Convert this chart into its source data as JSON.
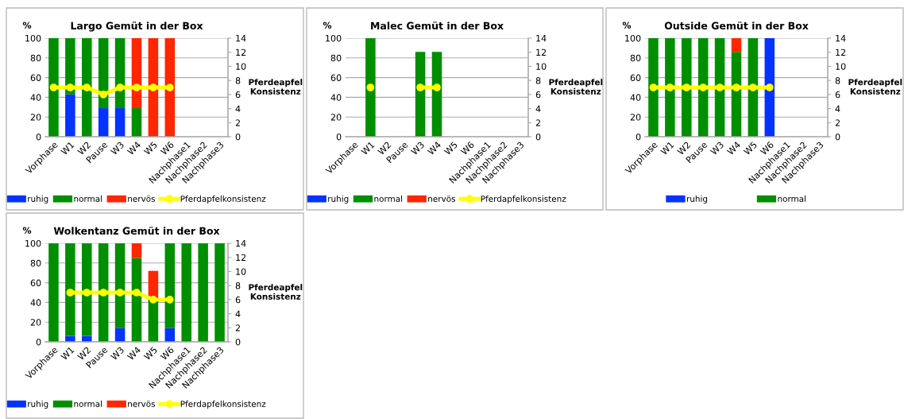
{
  "chart_data": [
    {
      "type": "bar",
      "title": "Largo Gemüt in der Box",
      "ylabel": "%",
      "y2label": "Pferdeapfel\nKonsistenz",
      "stacked": true,
      "grid": "y",
      "legend": "bottom",
      "categories": [
        "Vorphase",
        "W1",
        "W2",
        "Pause",
        "W3",
        "W4",
        "W5",
        "W6",
        "Nachphase1",
        "Nachphase2",
        "Nachphase3"
      ],
      "ylim": [
        0,
        100
      ],
      "yticks": [
        0,
        20,
        40,
        60,
        80,
        100
      ],
      "y2lim": [
        0,
        14
      ],
      "y2ticks": [
        0,
        2,
        4,
        6,
        8,
        10,
        12,
        14
      ],
      "series": [
        {
          "name": "ruhig",
          "color": "#0433ff",
          "values": [
            0,
            43,
            0,
            29,
            29,
            0,
            0,
            0,
            null,
            null,
            null
          ]
        },
        {
          "name": "normal",
          "color": "#008f00",
          "values": [
            100,
            57,
            100,
            71,
            71,
            29,
            0,
            0,
            null,
            null,
            null
          ]
        },
        {
          "name": "nervös",
          "color": "#ff2600",
          "values": [
            0,
            0,
            0,
            0,
            0,
            71,
            100,
            100,
            null,
            null,
            null
          ]
        },
        {
          "name": "Pferdapfelkonsistenz",
          "type": "line",
          "axis": "y2",
          "color": "#ffff00",
          "marker": "circle",
          "values": [
            7,
            7,
            7,
            6,
            7,
            7,
            7,
            7,
            null,
            null,
            null
          ]
        }
      ]
    },
    {
      "type": "bar",
      "title": "Malec Gemüt in der Box",
      "ylabel": "%",
      "y2label": "Pferdeapfel\nKonsistenz",
      "stacked": true,
      "grid": "y",
      "legend": "bottom",
      "categories": [
        "Vorphase",
        "W1",
        "W2",
        "Pause",
        "W3",
        "W4",
        "W5",
        "W6",
        "Nachphase1",
        "Nachphase2",
        "Nachphase3"
      ],
      "ylim": [
        0,
        100
      ],
      "yticks": [
        0,
        20,
        40,
        60,
        80,
        100
      ],
      "y2lim": [
        0,
        14
      ],
      "y2ticks": [
        0,
        2,
        4,
        6,
        8,
        10,
        12,
        14
      ],
      "series": [
        {
          "name": "ruhig",
          "color": "#0433ff",
          "values": [
            null,
            null,
            null,
            null,
            null,
            null,
            null,
            null,
            null,
            null,
            null
          ]
        },
        {
          "name": "normal",
          "color": "#008f00",
          "values": [
            null,
            100,
            null,
            null,
            86,
            86,
            null,
            null,
            null,
            null,
            null
          ]
        },
        {
          "name": "nervös",
          "color": "#ff2600",
          "values": [
            null,
            null,
            null,
            null,
            null,
            null,
            null,
            null,
            null,
            null,
            null
          ]
        },
        {
          "name": "Pferdapfelkonsistenz",
          "type": "line",
          "axis": "y2",
          "color": "#ffff00",
          "marker": "circle",
          "values": [
            null,
            7,
            null,
            null,
            7,
            7,
            null,
            null,
            null,
            null,
            null
          ]
        }
      ]
    },
    {
      "type": "bar",
      "title": "Outside Gemüt in der Box",
      "ylabel": "%",
      "y2label": "Pferdeapfel\nKonsistenz",
      "stacked": true,
      "grid": "y",
      "legend": "bottom",
      "categories": [
        "Vorphase",
        "W1",
        "W2",
        "Pause",
        "W3",
        "W4",
        "W5",
        "W6",
        "Nachphase1",
        "Nachphase2",
        "Nachphase3"
      ],
      "ylim": [
        0,
        100
      ],
      "yticks": [
        0,
        20,
        40,
        60,
        80,
        100
      ],
      "y2lim": [
        0,
        14
      ],
      "y2ticks": [
        0,
        2,
        4,
        6,
        8,
        10,
        12,
        14
      ],
      "series": [
        {
          "name": "ruhig",
          "color": "#0433ff",
          "values": [
            0,
            0,
            0,
            0,
            0,
            0,
            0,
            100,
            null,
            null,
            null
          ]
        },
        {
          "name": "normal",
          "color": "#008f00",
          "values": [
            100,
            100,
            100,
            100,
            100,
            86,
            100,
            0,
            null,
            null,
            null
          ]
        },
        {
          "color": "#ff2600",
          "values": [
            0,
            0,
            0,
            0,
            0,
            14,
            0,
            0,
            null,
            null,
            null
          ]
        },
        {
          "type": "line",
          "axis": "y2",
          "color": "#ffff00",
          "marker": "circle",
          "values": [
            7,
            7,
            7,
            7,
            7,
            7,
            7,
            7,
            null,
            null,
            null
          ]
        }
      ]
    },
    {
      "type": "bar",
      "title": "Wolkentanz Gemüt in der Box",
      "ylabel": "%",
      "y2label": "Pferdeapfel\nKonsistenz",
      "stacked": true,
      "grid": "y",
      "legend": "bottom",
      "categories": [
        "Vorphase",
        "W1",
        "W2",
        "Pause",
        "W3",
        "W4",
        "W5",
        "W6",
        "Nachphase1",
        "Nachphase2",
        "Nachphase3"
      ],
      "ylim": [
        0,
        100
      ],
      "yticks": [
        0,
        20,
        40,
        60,
        80,
        100
      ],
      "y2lim": [
        0,
        14
      ],
      "y2ticks": [
        0,
        2,
        4,
        6,
        8,
        10,
        12,
        14
      ],
      "series": [
        {
          "name": "ruhig",
          "color": "#0433ff",
          "values": [
            0,
            6,
            6,
            0,
            14,
            0,
            0,
            14,
            0,
            0,
            0
          ]
        },
        {
          "name": "normal",
          "color": "#008f00",
          "values": [
            100,
            94,
            94,
            100,
            86,
            85,
            43,
            86,
            100,
            100,
            100
          ]
        },
        {
          "name": "nervös",
          "color": "#ff2600",
          "values": [
            0,
            0,
            0,
            0,
            0,
            15,
            29,
            0,
            0,
            0,
            0
          ]
        },
        {
          "name": "Pferdapfelkonsistenz",
          "type": "line",
          "axis": "y2",
          "color": "#ffff00",
          "marker": "circle",
          "values": [
            null,
            7,
            7,
            7,
            7,
            7,
            6,
            6,
            null,
            null,
            null
          ]
        }
      ]
    }
  ]
}
